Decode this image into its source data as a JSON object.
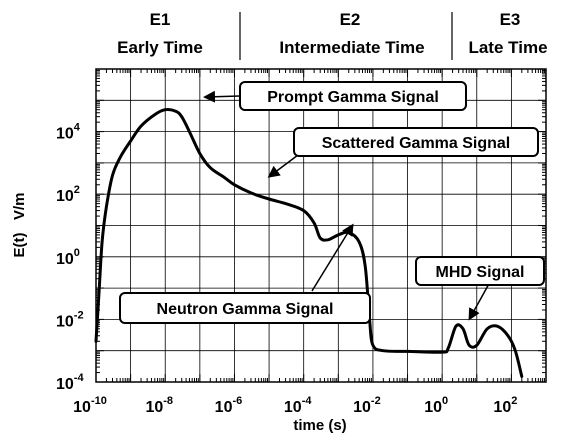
{
  "chart_data": {
    "type": "line",
    "title": "",
    "xlabel": "time (s)",
    "ylabel": "E(t)   V/m",
    "x_scale": "log",
    "y_scale": "log",
    "xlim": [
      1e-10,
      1000.0
    ],
    "ylim": [
      0.0001,
      1000000.0
    ],
    "grid": true,
    "x_ticks": [
      {
        "base": "10",
        "exp": "-10"
      },
      {
        "base": "10",
        "exp": "-8"
      },
      {
        "base": "10",
        "exp": "-6"
      },
      {
        "base": "10",
        "exp": "-4"
      },
      {
        "base": "10",
        "exp": "-2"
      },
      {
        "base": "10",
        "exp": "0"
      },
      {
        "base": "10",
        "exp": "2"
      }
    ],
    "y_ticks": [
      {
        "base": "10",
        "exp": "-4"
      },
      {
        "base": "10",
        "exp": "-2"
      },
      {
        "base": "10",
        "exp": "0"
      },
      {
        "base": "10",
        "exp": "2"
      },
      {
        "base": "10",
        "exp": "4"
      }
    ],
    "regions": [
      {
        "id": "E1",
        "name": "Early Time"
      },
      {
        "id": "E2",
        "name": "Intermediate Time"
      },
      {
        "id": "E3",
        "name": "Late Time"
      }
    ],
    "annotations": [
      {
        "text": "Prompt Gamma Signal",
        "x": 4e-08,
        "y": 20000.0
      },
      {
        "text": "Scattered Gamma Signal",
        "x": 1e-05,
        "y": 120
      },
      {
        "text": "Neutron Gamma Signal",
        "x": 0.0005,
        "y": 3
      },
      {
        "text": "MHD Signal",
        "x": 3,
        "y": 0.006
      }
    ],
    "series": [
      {
        "values": [
          [
            1e-10,
            0.002
          ],
          [
            1.2e-10,
            0.05
          ],
          [
            1.5e-10,
            3
          ],
          [
            2e-10,
            40
          ],
          [
            3e-10,
            400
          ],
          [
            5e-10,
            1500
          ],
          [
            1e-09,
            5000
          ],
          [
            2e-09,
            15000
          ],
          [
            5e-09,
            35000
          ],
          [
            1e-08,
            50000
          ],
          [
            2e-08,
            45000
          ],
          [
            3e-08,
            30000
          ],
          [
            5e-08,
            10000
          ],
          [
            1e-07,
            2000
          ],
          [
            2e-07,
            700
          ],
          [
            5e-07,
            350
          ],
          [
            1e-06,
            200
          ],
          [
            3e-06,
            110
          ],
          [
            1e-05,
            70
          ],
          [
            3e-05,
            50
          ],
          [
            0.0001,
            30
          ],
          [
            0.0002,
            12
          ],
          [
            0.0003,
            4
          ],
          [
            0.0005,
            3.5
          ],
          [
            0.001,
            5
          ],
          [
            0.002,
            6
          ],
          [
            0.004,
            3
          ],
          [
            0.006,
            0.5
          ],
          [
            0.008,
            0.01
          ],
          [
            0.01,
            0.0015
          ],
          [
            0.02,
            0.001
          ],
          [
            0.1,
            0.00095
          ],
          [
            1,
            0.0009
          ],
          [
            1.5,
            0.0012
          ],
          [
            2.5,
            0.006
          ],
          [
            4,
            0.005
          ],
          [
            6,
            0.0015
          ],
          [
            10.0,
            0.0015
          ],
          [
            20.0,
            0.005
          ],
          [
            40.0,
            0.006
          ],
          [
            80.0,
            0.003
          ],
          [
            130.0,
            0.001
          ],
          [
            200.0,
            0.00015
          ]
        ]
      }
    ]
  }
}
